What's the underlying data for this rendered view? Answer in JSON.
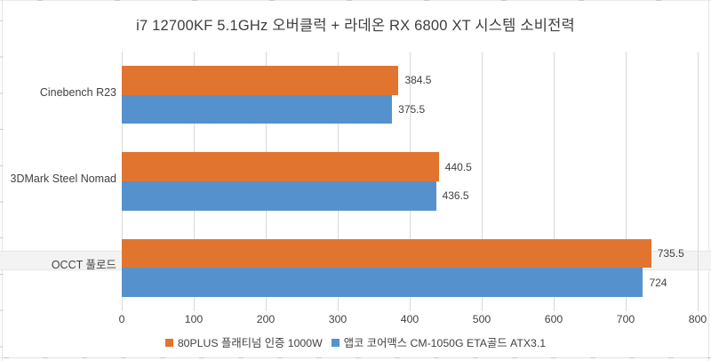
{
  "title": "i7 12700KF 5.1GHz 오버클럭 + 라데온 RX 6800 XT 시스템 소비전력",
  "chart_data": {
    "type": "bar",
    "orientation": "horizontal",
    "title": "i7 12700KF 5.1GHz 오버클럭 + 라데온 RX 6800 XT 시스템 소비전력",
    "categories": [
      "Cinebench R23",
      "3DMark Steel Nomad",
      "OCCT 풀로드"
    ],
    "series": [
      {
        "name": "80PLUS 플래티넘 인증 1000W",
        "color": "#E1752F",
        "values": [
          384.5,
          440.5,
          735.5
        ],
        "value_labels": [
          "384.5",
          "440.5",
          "735.5"
        ]
      },
      {
        "name": "앱코 코어맥스 CM-1050G ETA골드 ATX3.1",
        "color": "#5592CD",
        "values": [
          375.5,
          436.5,
          724
        ],
        "value_labels": [
          "375.5",
          "436.5",
          "724"
        ]
      }
    ],
    "xlim": [
      0,
      800
    ],
    "x_tick_labels": [
      "0",
      "100",
      "200",
      "300",
      "400",
      "500",
      "600",
      "700",
      "800"
    ],
    "grid": true,
    "legend_position": "bottom",
    "value_labels_shown": true,
    "highlighted_category": "OCCT 풀로드"
  },
  "colors": {
    "series1": "#E1752F",
    "series2": "#5592CD",
    "gridline": "#D9D9D9",
    "text": "#424242",
    "row_highlight": "#F3F3F3",
    "frame": "#E4E4E4"
  }
}
